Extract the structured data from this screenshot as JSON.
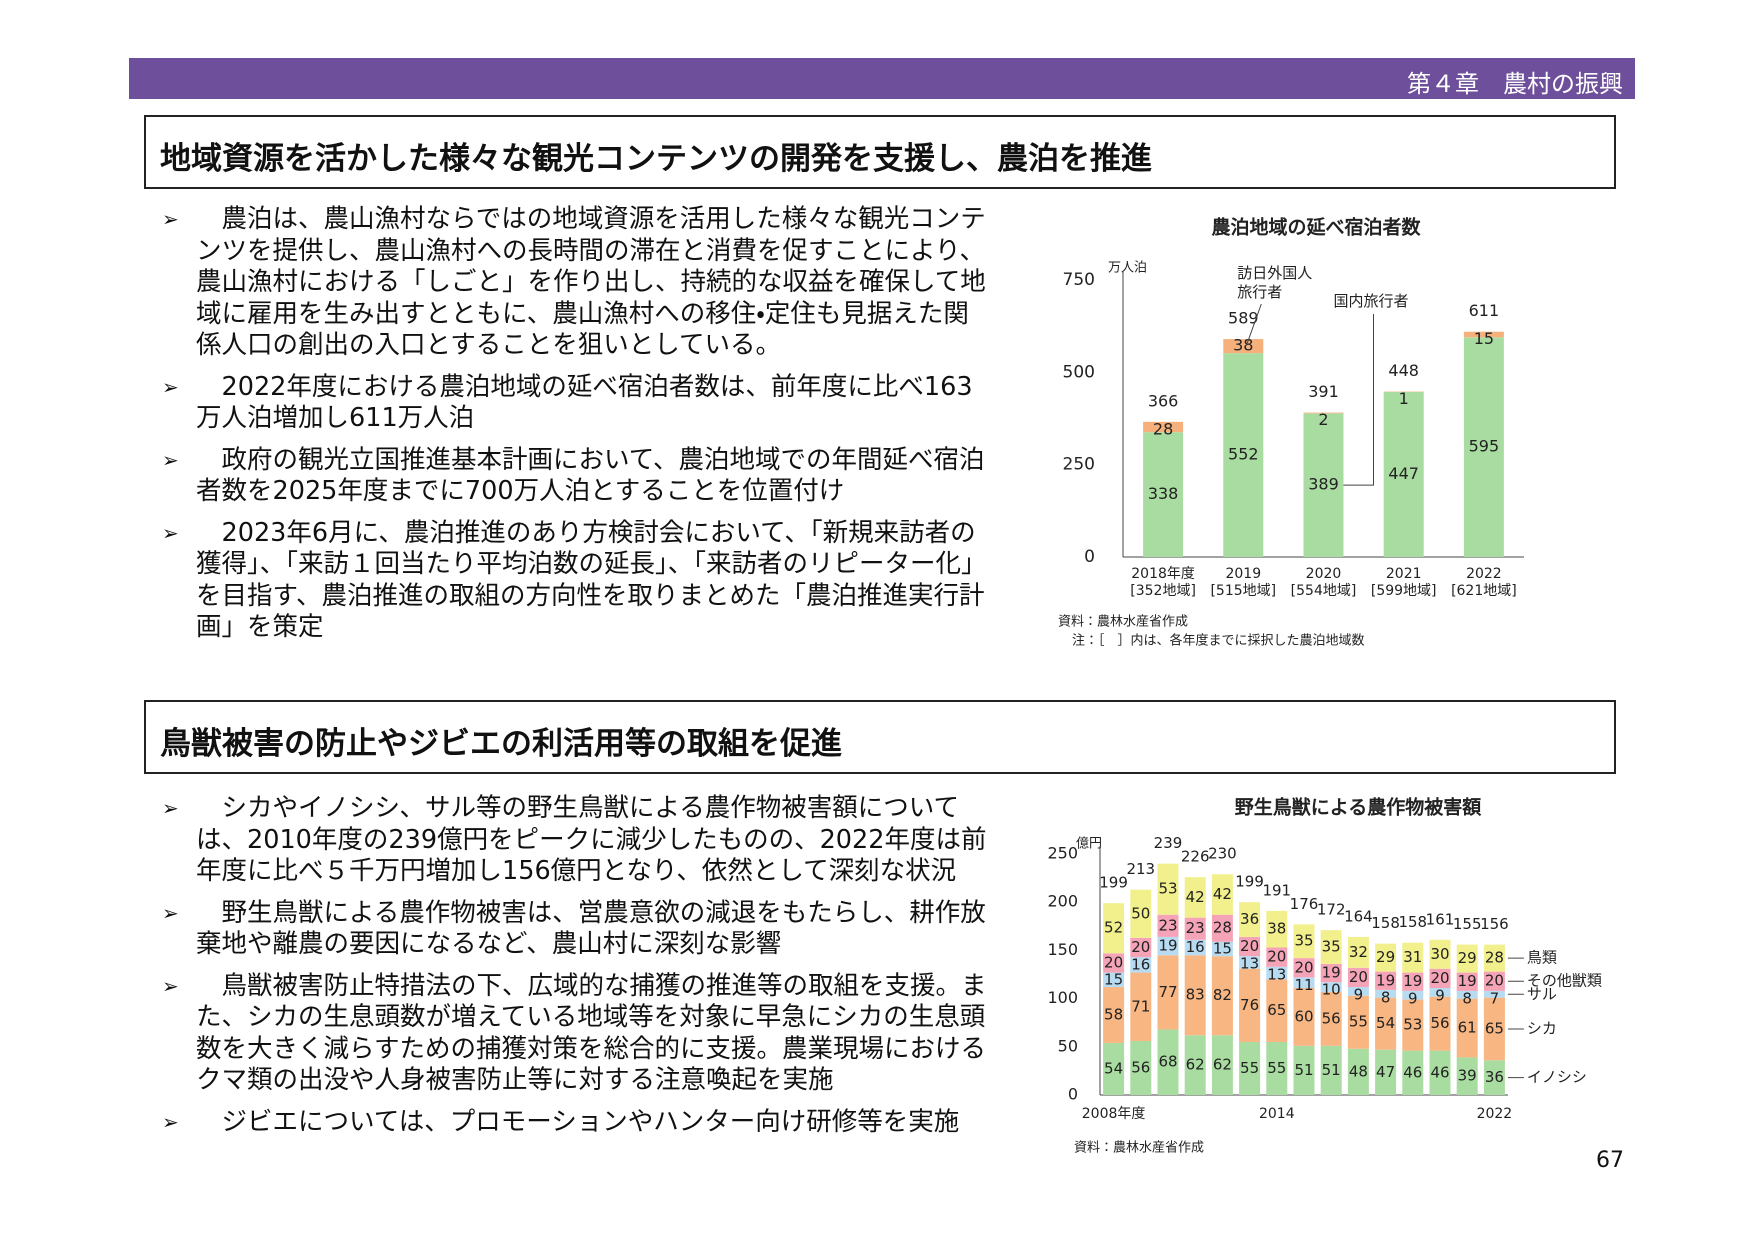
{
  "header": {
    "chapter": "第４章　農村の振興",
    "page_number": "67"
  },
  "sections": [
    {
      "title": "地域資源を活かした様々な観光コンテンツの開発を支援し、農泊を推進",
      "bullets": [
        "農泊は、農山漁村ならではの地域資源を活用した様々な観光コンテンツを提供し、農山漁村への長時間の滞在と消費を促すことにより、農山漁村における「しごと」を作り出し、持続的な収益を確保して地域に雇用を生み出すとともに、農山漁村への移住・定住も見据えた関係人口の創出の入口とすることを狙いとしている。",
        "2022年度における農泊地域の延べ宿泊者数は、前年度に比べ163万人泊増加し611万人泊",
        "政府の観光立国推進基本計画において、農泊地域での年間延べ宿泊者数を2025年度までに700万人泊とすることを位置付け",
        "2023年6月に、農泊推進のあり方検討会において、「新規来訪者の獲得」、「来訪１回当たり平均泊数の延長」、「来訪者のリピーター化」を目指す、農泊推進の取組の方向性を取りまとめた「農泊推進実行計画」を策定"
      ]
    },
    {
      "title": "鳥獣被害の防止やジビエの利活用等の取組を促進",
      "bullets": [
        "シカやイノシシ、サル等の野生鳥獣による農作物被害額については、2010年度の239億円をピークに減少したものの、2022年度は前年度に比べ５千万円増加し156億円となり、依然として深刻な状況",
        "野生鳥獣による農作物被害は、営農意欲の減退をもたらし、耕作放棄地や離農の要因になるなど、農山村に深刻な影響",
        "鳥獣被害防止特措法の下、広域的な捕獲の推進等の取組を支援。また、シカの生息頭数が増えている地域等を対象に早急にシカの生息頭数を大きく減らすための捕獲対策を総合的に支援。農業現場におけるクマ類の出没や人身被害防止等に対する注意喚起を実施",
        "ジビエについては、プロモーションやハンター向け研修等を実施"
      ]
    }
  ],
  "chart_data": [
    {
      "type": "stacked_bar",
      "title": "農泊地域の延べ宿泊者数",
      "y_unit": "万人泊",
      "categories": [
        "2018年度",
        "2019",
        "2020",
        "2021",
        "2022"
      ],
      "category_notes": [
        "[352地域]",
        "[515地域]",
        "[554地域]",
        "[599地域]",
        "[621地域]"
      ],
      "series": [
        {
          "name": "国内旅行者",
          "color": "#a9dca0",
          "values": [
            338,
            552,
            389,
            447,
            595
          ]
        },
        {
          "name": "訪日外国人旅行者",
          "color": "#f6b07c",
          "values": [
            28,
            38,
            2,
            1,
            15
          ]
        }
      ],
      "totals": [
        366,
        589,
        391,
        448,
        611
      ],
      "ylim": [
        0,
        750
      ],
      "yticks": [
        0,
        250,
        500,
        750
      ],
      "grid": false,
      "legend": "callout",
      "notes": [
        "資料：農林水産省作成",
        "注：［　］内は、各年度までに採択した農泊地域数"
      ]
    },
    {
      "type": "stacked_bar",
      "title": "野生鳥獣による農作物被害額",
      "y_unit": "億円",
      "categories": [
        "2008年度",
        null,
        null,
        null,
        null,
        null,
        "2014",
        null,
        null,
        null,
        null,
        null,
        null,
        null,
        "2022"
      ],
      "series": [
        {
          "name": "イノシシ",
          "color": "#a9dca0",
          "values": [
            54,
            56,
            68,
            62,
            62,
            55,
            55,
            51,
            51,
            48,
            47,
            46,
            46,
            39,
            36
          ]
        },
        {
          "name": "シカ",
          "color": "#f8b682",
          "values": [
            58,
            71,
            77,
            83,
            82,
            76,
            65,
            60,
            56,
            55,
            54,
            53,
            56,
            61,
            65
          ]
        },
        {
          "name": "サル",
          "color": "#b7dcf2",
          "values": [
            15,
            16,
            19,
            16,
            15,
            13,
            13,
            11,
            10,
            9,
            8,
            9,
            9,
            8,
            7
          ]
        },
        {
          "name": "その他獣類",
          "color": "#f5a3b6",
          "values": [
            20,
            20,
            23,
            23,
            28,
            20,
            20,
            20,
            19,
            20,
            19,
            19,
            20,
            19,
            20
          ]
        },
        {
          "name": "鳥類",
          "color": "#f2f08c",
          "values": [
            52,
            50,
            53,
            42,
            42,
            36,
            38,
            35,
            35,
            32,
            29,
            31,
            30,
            29,
            28
          ]
        }
      ],
      "totals": [
        199,
        213,
        239,
        226,
        230,
        199,
        191,
        176,
        172,
        164,
        158,
        158,
        161,
        155,
        156
      ],
      "ylim": [
        0,
        250
      ],
      "yticks": [
        0,
        50,
        100,
        150,
        200,
        250
      ],
      "grid": false,
      "legend": "right",
      "notes": [
        "資料：農林水産省作成"
      ]
    }
  ]
}
